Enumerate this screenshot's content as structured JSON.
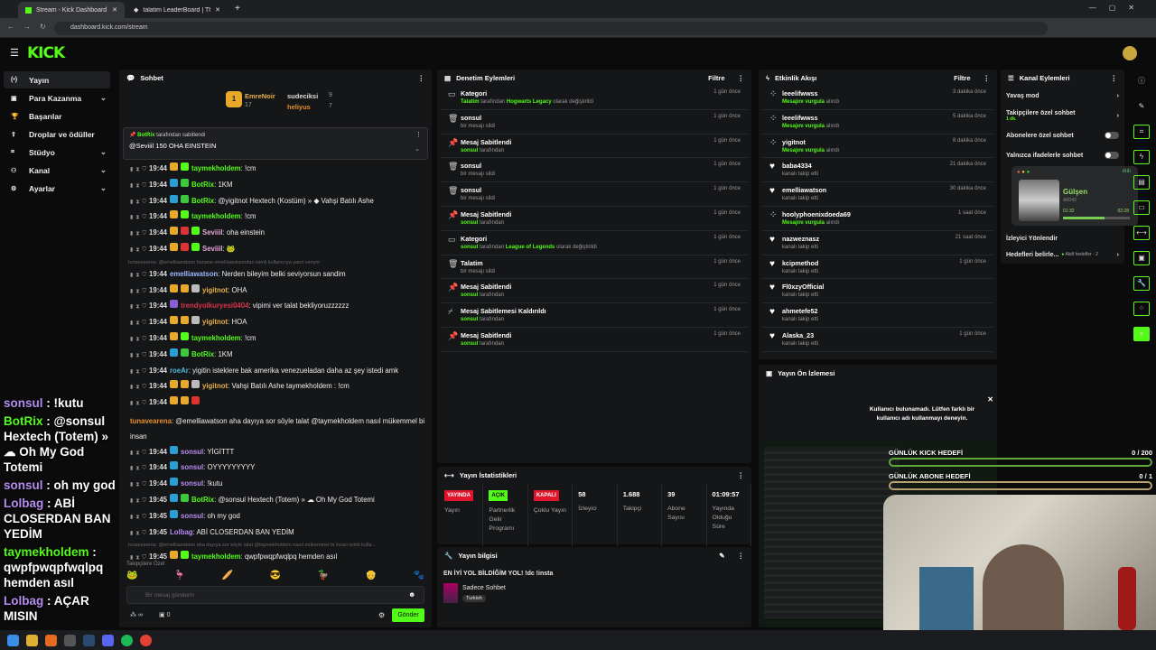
{
  "browser": {
    "tabs": [
      {
        "title": "Stream - Kick Dashboard"
      },
      {
        "title": "talatim LeaderBoard | The best"
      }
    ],
    "url": "dashboard.kick.com/stream"
  },
  "app": {
    "logo": "KICK"
  },
  "sidebar": {
    "items": [
      {
        "label": "Yayın",
        "icon": "broadcast-icon",
        "expand": false
      },
      {
        "label": "Para Kazanma",
        "icon": "money-icon",
        "expand": true
      },
      {
        "label": "Başarılar",
        "icon": "trophy-icon",
        "expand": false
      },
      {
        "label": "Droplar ve ödüller",
        "icon": "gift-icon",
        "expand": false
      },
      {
        "label": "Stüdyo",
        "icon": "studio-icon",
        "expand": true
      },
      {
        "label": "Kanal",
        "icon": "channel-icon",
        "expand": true
      },
      {
        "label": "Ayarlar",
        "icon": "gear-icon",
        "expand": true
      }
    ]
  },
  "chat": {
    "title": "Sohbet",
    "leaderboard": {
      "first": {
        "name": "EmreNoir",
        "count": "17",
        "rank": "1"
      },
      "second": {
        "name": "sudeciksi",
        "count": "9"
      },
      "third": {
        "name": "heliyus",
        "count": "7"
      }
    },
    "pinned": {
      "by": "BotRix",
      "by_suffix": "tarafından sabitlendi",
      "text": "@Seviiil 150 OHA EINSTEIN"
    },
    "messages": [
      {
        "time": "19:44",
        "user": "taymekholdem",
        "color": "#53fc18",
        "text": "!cm",
        "badges": [
          "#e8a82a",
          "#53fc18"
        ]
      },
      {
        "time": "19:44",
        "user": "BotRix",
        "color": "#53fc18",
        "text": "1KM",
        "badges": [
          "#2a9fd6",
          "#3cc83c"
        ]
      },
      {
        "time": "19:44",
        "user": "BotRix",
        "color": "#53fc18",
        "text": "@yigitnot Hextech (Kostüm) » ◆ Vahşi Batılı Ashe",
        "badges": [
          "#2a9fd6",
          "#3cc83c"
        ]
      },
      {
        "time": "19:44",
        "user": "taymekholdem",
        "color": "#53fc18",
        "text": "!cm",
        "badges": [
          "#e8a82a",
          "#53fc18"
        ]
      },
      {
        "time": "19:44",
        "user": "Seviiil",
        "color": "#e5a7d6",
        "text": "oha einstein",
        "badges": [
          "#e8a82a",
          "#d33",
          "#53fc18"
        ]
      },
      {
        "time": "19:44",
        "user": "Seviiil",
        "color": "#e5a7d6",
        "text": "🐸",
        "badges": [
          "#e8a82a",
          "#d33",
          "#53fc18"
        ]
      },
      {
        "reply": "tunavearena: @emelliawatson banane emelliawatsondan isimli kullanıcıya yanıt veriyor"
      },
      {
        "time": "19:44",
        "user": "emelliawatson",
        "color": "#9db7ff",
        "text": "Nerden bileyim belki seviyorsun sandim",
        "badges": []
      },
      {
        "time": "19:44",
        "user": "yigitnot",
        "color": "#e8b04a",
        "text": "OHA",
        "badges": [
          "#e8a82a",
          "#e8a82a",
          "#bbb"
        ]
      },
      {
        "time": "19:44",
        "user": "trendyolkuryesi0404",
        "color": "#d8344a",
        "text": "vipimi ver talat bekliyoruzzzzzz",
        "badges": [
          "#8b5cd6"
        ]
      },
      {
        "time": "19:44",
        "user": "yigitnot",
        "color": "#e8b04a",
        "text": "HOA",
        "badges": [
          "#e8a82a",
          "#e8a82a",
          "#bbb"
        ]
      },
      {
        "time": "19:44",
        "user": "taymekholdem",
        "color": "#53fc18",
        "text": "!cm",
        "badges": [
          "#e8a82a",
          "#53fc18"
        ]
      },
      {
        "time": "19:44",
        "user": "BotRix",
        "color": "#53fc18",
        "text": "1KM",
        "badges": [
          "#2a9fd6",
          "#3cc83c"
        ]
      },
      {
        "time": "19:44",
        "user": "roeAr",
        "color": "#4fb7d8",
        "text": "yigitin isteklere bak amerika venezueladan daha az şey istedi amk",
        "badges": [],
        "wrap": true
      },
      {
        "time": "19:44",
        "user": "yigitnot",
        "color": "#e8b04a",
        "text": "Vahşi Batılı Ashe taymekholdem : !cm",
        "badges": [
          "#e8a82a",
          "#e8a82a",
          "#bbb"
        ]
      },
      {
        "time": "19:44",
        "user": "tunavearena",
        "color": "#e8902a",
        "text": "@emelliawatson aha dayıya sor söyle talat @taymekholdem nasıl mükemmel bi insan",
        "badges": [
          "#e8a82a",
          "#e8a82a",
          "#d33"
        ],
        "wrap": true
      },
      {
        "time": "19:44",
        "user": "sonsul",
        "color": "#b58cf0",
        "text": "YİGİTTT",
        "badges": [
          "#2a9fd6"
        ]
      },
      {
        "time": "19:44",
        "user": "sonsul",
        "color": "#b58cf0",
        "text": "OYYYYYYYYY",
        "badges": [
          "#2a9fd6"
        ]
      },
      {
        "time": "19:44",
        "user": "sonsul",
        "color": "#b58cf0",
        "text": "!kutu",
        "badges": [
          "#2a9fd6"
        ]
      },
      {
        "time": "19:45",
        "user": "BotRix",
        "color": "#53fc18",
        "text": "@sonsul Hextech (Totem) » ☁ Oh My God Totemi",
        "badges": [
          "#2a9fd6",
          "#3cc83c"
        ]
      },
      {
        "time": "19:45",
        "user": "sonsul",
        "color": "#b58cf0",
        "text": "oh my god",
        "badges": [
          "#2a9fd6"
        ]
      },
      {
        "time": "19:45",
        "user": "Lolbag",
        "color": "#b58cf0",
        "text": "ABİ CLOSERDAN BAN YEDİM",
        "badges": []
      },
      {
        "reply": "tunavearena: @emelliawatson aha dayıya sor söyle talat @taymekholdem nasıl mükemmel bi insan isimli kulla..."
      },
      {
        "time": "19:45",
        "user": "taymekholdem",
        "color": "#53fc18",
        "text": "qwpfpwqpfwqlpq hemden asıl",
        "badges": [
          "#e8a82a",
          "#53fc18"
        ]
      },
      {
        "time": "19:45",
        "user": "Lolbag",
        "color": "#b58cf0",
        "text": "AÇAR MISIN",
        "badges": []
      }
    ],
    "emote_section": "Takipçilere Özel",
    "input_placeholder": "Bir mesaj gönderin",
    "points": "∞",
    "gifts": "0",
    "send_label": "Gönder"
  },
  "moderation": {
    "title": "Denetim Eylemleri",
    "filter": "Filtre",
    "items": [
      {
        "icon": "category-icon",
        "title": "Kategori",
        "sub": [
          [
            "Talatim",
            true
          ],
          [
            " tarafından ",
            false
          ],
          [
            "Hogwarts Legacy",
            true
          ],
          [
            " olarak değiştirildi",
            false
          ]
        ],
        "time": "1 gün önce"
      },
      {
        "icon": "trash-icon",
        "title": "sonsul",
        "sub": [
          [
            "bir mesajı sildi",
            false
          ]
        ],
        "time": "1 gün önce"
      },
      {
        "icon": "pin-icon",
        "title": "Mesaj Sabitlendi",
        "sub": [
          [
            "sonsul",
            true
          ],
          [
            " tarafından",
            false
          ]
        ],
        "time": "1 gün önce"
      },
      {
        "icon": "trash-icon",
        "title": "sonsul",
        "sub": [
          [
            "bir mesajı sildi",
            false
          ]
        ],
        "time": "1 gün önce"
      },
      {
        "icon": "trash-icon",
        "title": "sonsul",
        "sub": [
          [
            "bir mesajı sildi",
            false
          ]
        ],
        "time": "1 gün önce"
      },
      {
        "icon": "pin-icon",
        "title": "Mesaj Sabitlendi",
        "sub": [
          [
            "sonsul",
            true
          ],
          [
            " tarafından",
            false
          ]
        ],
        "time": "1 gün önce"
      },
      {
        "icon": "category-icon",
        "title": "Kategori",
        "sub": [
          [
            "sonsul",
            true
          ],
          [
            " tarafından ",
            false
          ],
          [
            "League of Legends",
            true
          ],
          [
            " olarak değiştirildi",
            false
          ]
        ],
        "time": "1 gün önce"
      },
      {
        "icon": "trash-icon",
        "title": "Talatim",
        "sub": [
          [
            "bir mesajı sildi",
            false
          ]
        ],
        "time": "1 gün önce"
      },
      {
        "icon": "pin-icon",
        "title": "Mesaj Sabitlendi",
        "sub": [
          [
            "sonsul",
            true
          ],
          [
            " tarafından",
            false
          ]
        ],
        "time": "1 gün önce"
      },
      {
        "icon": "unpin-icon",
        "title": "Mesaj Sabitlemesi Kaldırıldı",
        "sub": [
          [
            "sonsul",
            true
          ],
          [
            " tarafından",
            false
          ]
        ],
        "time": "1 gün önce"
      },
      {
        "icon": "pin-icon",
        "title": "Mesaj Sabitlendi",
        "sub": [
          [
            "sonsul",
            true
          ],
          [
            " tarafından",
            false
          ]
        ],
        "time": "1 gün önce"
      }
    ]
  },
  "activity": {
    "title": "Etkinlik Akışı",
    "filter": "Filtre",
    "items": [
      {
        "icon": "highlight-icon",
        "user": "leeelifwwss",
        "sub": [
          [
            "Mesajını vurgula",
            true
          ],
          [
            " alındı",
            false
          ]
        ],
        "time": "3 dakika önce"
      },
      {
        "icon": "highlight-icon",
        "user": "leeelifwwss",
        "sub": [
          [
            "Mesajını vurgula",
            true
          ],
          [
            " alındı",
            false
          ]
        ],
        "time": "5 dakika önce"
      },
      {
        "icon": "highlight-icon",
        "user": "yigitnot",
        "sub": [
          [
            "Mesajını vurgula",
            true
          ],
          [
            " alındı",
            false
          ]
        ],
        "time": "8 dakika önce"
      },
      {
        "icon": "heart-icon",
        "user": "baba4334",
        "sub": [
          [
            "kanalı takip etti",
            false
          ]
        ],
        "time": "21 dakika önce"
      },
      {
        "icon": "heart-icon",
        "user": "emelliawatson",
        "sub": [
          [
            "kanalı takip etti",
            false
          ]
        ],
        "time": "30 dakika önce"
      },
      {
        "icon": "highlight-icon",
        "user": "hoolyphoenixdoeda69",
        "sub": [
          [
            "Mesajını vurgula",
            true
          ],
          [
            " alındı",
            false
          ]
        ],
        "time": "1 saat önce"
      },
      {
        "icon": "heart-icon",
        "user": "nazweznasz",
        "sub": [
          [
            "kanalı takip etti",
            false
          ]
        ],
        "time": "21 saat önce"
      },
      {
        "icon": "heart-icon",
        "user": "kcipmethod",
        "sub": [
          [
            "kanalı takip etti",
            false
          ]
        ],
        "time": "1 gün önce"
      },
      {
        "icon": "heart-icon",
        "user": "Fl0xzyOfficial",
        "sub": [
          [
            "kanalı takip etti",
            false
          ]
        ],
        "time": ""
      },
      {
        "icon": "heart-icon",
        "user": "ahmetefe52",
        "sub": [
          [
            "kanalı takip etti",
            false
          ]
        ],
        "time": ""
      },
      {
        "icon": "heart-icon",
        "user": "Alaska_23",
        "sub": [
          [
            "kanalı takip etti",
            false
          ]
        ],
        "time": "1 gün önce"
      }
    ],
    "toast": "Kullanıcı bulunamadı. Lütfen farklı bir kullanıcı adı kullanmayı deneyin."
  },
  "preview": {
    "title": "Yayın Ön İzlemesi"
  },
  "goals": [
    {
      "label": "GÜNLÜK KICK HEDEFİ",
      "value": "0 / 200",
      "progress": 0,
      "color": "#5fa83a"
    },
    {
      "label": "GÜNLÜK ABONE HEDEFİ",
      "value": "0 / 1",
      "progress": 0,
      "color": "#b8a070"
    }
  ],
  "channel_actions": {
    "title": "Kanal Eylemleri",
    "items": [
      {
        "label": "Yavaş mod",
        "control": "chevron"
      },
      {
        "label": "Takipçilere özel sohbet",
        "sub": "1 dk.",
        "control": "chevron"
      },
      {
        "label": "Abonelere özel sohbet",
        "control": "toggle"
      },
      {
        "label": "Yalnızca ifadelerle sohbet",
        "control": "toggle"
      }
    ],
    "redirect": "İzleyici Yönlendir",
    "goals_label": "Hedefleri belirle...",
    "goals_status": "Aktif hedefler - 2"
  },
  "music": {
    "title": "Gülşen",
    "artist": "AliO42",
    "elapsed": "01:32",
    "total": "02:28",
    "progress": 0.62
  },
  "stats": {
    "title": "Yayın İstatistikleri",
    "items": [
      {
        "pill": "YAYINDA",
        "pill_color": "#e0142a",
        "label": "Yayın"
      },
      {
        "pill": "AÇIK",
        "pill_color": "#53fc18",
        "label": "Partnerlik Gelir Programı"
      },
      {
        "pill": "KAPALI",
        "pill_color": "#e0142a",
        "label": "Çoklu Yayın"
      },
      {
        "value": "58",
        "label": "İzleyici"
      },
      {
        "value": "1.688",
        "label": "Takipçi"
      },
      {
        "value": "39",
        "label": "Abone Sayısı"
      },
      {
        "value": "01:09:57",
        "label": "Yayında Olduğu Süre"
      }
    ]
  },
  "stream_info": {
    "title": "Yayın bilgisi",
    "stream_title": "EN İYİ YOL BİLDİĞİM YOL! !dc !insta",
    "category": "Sadece Sohbet",
    "tag": "Turkish"
  },
  "overlay_chat": [
    {
      "user": "sonsul",
      "color": "#b58cf0",
      "text": " : !kutu"
    },
    {
      "user": "BotRix",
      "color": "#53fc18",
      "text": " : @sonsul Hextech (Totem) » ☁ Oh My God Totemi"
    },
    {
      "user": "sonsul",
      "color": "#b58cf0",
      "text": " : oh my god"
    },
    {
      "user": "Lolbag",
      "color": "#b58cf0",
      "text": " : ABİ CLOSERDAN BAN YEDİM"
    },
    {
      "user": "taymekholdem",
      "color": "#53fc18",
      "text": " : qwpfpwqpfwqlpq hemden asıl"
    },
    {
      "user": "Lolbag",
      "color": "#b58cf0",
      "text": " : AÇAR MISIN"
    }
  ]
}
